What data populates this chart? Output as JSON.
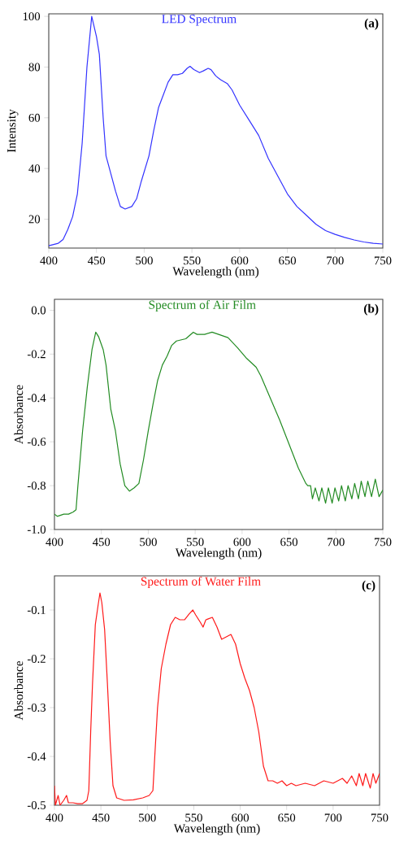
{
  "chart_data": [
    {
      "type": "line",
      "title": "LED Spectrum",
      "xlabel": "Wavelength (nm)",
      "ylabel": "Intensity",
      "annotations": [
        "(a)"
      ],
      "xlim": [
        400,
        750
      ],
      "ylim": [
        8.6,
        101
      ],
      "xticks": [
        400,
        450,
        500,
        550,
        600,
        650,
        700,
        750
      ],
      "yticks": [
        20,
        40,
        60,
        80,
        100
      ],
      "x": [
        400,
        410,
        415,
        420,
        425,
        430,
        435,
        440,
        445,
        450,
        453,
        457,
        460,
        465,
        470,
        475,
        480,
        487,
        492,
        497,
        505,
        510,
        515,
        520,
        525,
        530,
        535,
        540,
        545,
        548,
        552,
        558,
        562,
        567,
        570,
        575,
        580,
        587,
        592,
        600,
        610,
        620,
        630,
        640,
        650,
        660,
        670,
        680,
        690,
        700,
        710,
        720,
        730,
        740,
        750
      ],
      "series": [
        {
          "color": "#3333ff",
          "values": [
            9.5,
            10.5,
            12,
            16,
            21,
            30,
            50,
            80,
            100,
            92,
            85,
            60,
            45,
            38,
            31,
            25,
            24,
            25,
            28,
            35,
            45,
            55,
            64,
            69,
            74,
            77,
            77,
            77.5,
            79.5,
            80.3,
            79,
            77.8,
            78.5,
            79.5,
            79,
            76.5,
            75,
            73.5,
            71,
            65,
            59,
            53,
            44,
            37,
            30,
            25,
            21.5,
            18,
            15.5,
            14,
            12.8,
            11.8,
            11,
            10.5,
            10.2
          ]
        }
      ]
    },
    {
      "type": "line",
      "title": "Spectrum of Air Film",
      "xlabel": "Wavelength (nm)",
      "ylabel": "Absorbance",
      "annotations": [
        "(b)"
      ],
      "xlim": [
        400,
        750
      ],
      "ylim": [
        -1.0,
        0.05
      ],
      "xticks": [
        400,
        450,
        500,
        550,
        600,
        650,
        700,
        750
      ],
      "yticks": [
        {
          "value": 0,
          "label": "0.0"
        },
        -0.2,
        -0.4,
        -0.6,
        -0.8,
        {
          "value": -1,
          "label": "-1.0"
        }
      ],
      "x": [
        400,
        403,
        410,
        415,
        420,
        423,
        425,
        430,
        435,
        440,
        444,
        447,
        452,
        455,
        460,
        465,
        470,
        475,
        480,
        485,
        490,
        495,
        500,
        505,
        510,
        515,
        520,
        525,
        530,
        540,
        548,
        552,
        560,
        568,
        575,
        585,
        595,
        605,
        615,
        620,
        630,
        640,
        650,
        660,
        668,
        670,
        673,
        675,
        678,
        682,
        685,
        689,
        692,
        696,
        699,
        703,
        706,
        710,
        713,
        717,
        720,
        724,
        727,
        731,
        734,
        738,
        742,
        746,
        750
      ],
      "series": [
        {
          "color": "#228b22",
          "values": [
            -0.93,
            -0.94,
            -0.93,
            -0.93,
            -0.92,
            -0.91,
            -0.8,
            -0.55,
            -0.35,
            -0.18,
            -0.1,
            -0.12,
            -0.18,
            -0.25,
            -0.45,
            -0.55,
            -0.7,
            -0.8,
            -0.825,
            -0.81,
            -0.79,
            -0.68,
            -0.55,
            -0.43,
            -0.32,
            -0.25,
            -0.21,
            -0.16,
            -0.14,
            -0.13,
            -0.1,
            -0.11,
            -0.11,
            -0.1,
            -0.11,
            -0.125,
            -0.17,
            -0.22,
            -0.26,
            -0.3,
            -0.4,
            -0.5,
            -0.61,
            -0.72,
            -0.79,
            -0.8,
            -0.8,
            -0.86,
            -0.81,
            -0.87,
            -0.81,
            -0.88,
            -0.81,
            -0.88,
            -0.81,
            -0.87,
            -0.8,
            -0.87,
            -0.8,
            -0.86,
            -0.79,
            -0.86,
            -0.78,
            -0.85,
            -0.78,
            -0.85,
            -0.77,
            -0.85,
            -0.82
          ]
        }
      ]
    },
    {
      "type": "line",
      "title": "Spectrum of Water Film",
      "xlabel": "Wavelength (nm)",
      "ylabel": "Absorbance",
      "annotations": [
        "(c)"
      ],
      "xlim": [
        400,
        750
      ],
      "ylim": [
        -0.5,
        -0.03
      ],
      "xticks": [
        400,
        450,
        500,
        550,
        600,
        650,
        700,
        750
      ],
      "yticks": [
        -0.1,
        -0.2,
        -0.3,
        -0.4,
        -0.5
      ],
      "x": [
        400,
        401,
        404,
        406,
        410,
        413,
        415,
        420,
        425,
        430,
        435,
        437,
        439,
        441,
        444,
        447,
        449,
        451,
        454,
        457,
        460,
        463,
        467,
        475,
        485,
        495,
        502,
        506,
        508,
        511,
        515,
        520,
        525,
        530,
        535,
        540,
        545,
        549,
        552,
        557,
        560,
        563,
        570,
        575,
        580,
        585,
        590,
        595,
        600,
        605,
        610,
        615,
        620,
        625,
        630,
        635,
        640,
        645,
        650,
        655,
        660,
        670,
        680,
        690,
        700,
        710,
        715,
        720,
        725,
        728,
        732,
        735,
        740,
        743,
        746,
        750
      ],
      "series": [
        {
          "color": "#ff1a1a",
          "values": [
            -0.46,
            -0.5,
            -0.48,
            -0.5,
            -0.49,
            -0.48,
            -0.495,
            -0.495,
            -0.497,
            -0.497,
            -0.49,
            -0.47,
            -0.35,
            -0.25,
            -0.13,
            -0.09,
            -0.065,
            -0.085,
            -0.14,
            -0.25,
            -0.37,
            -0.46,
            -0.485,
            -0.49,
            -0.489,
            -0.485,
            -0.48,
            -0.47,
            -0.4,
            -0.3,
            -0.22,
            -0.17,
            -0.13,
            -0.115,
            -0.12,
            -0.12,
            -0.108,
            -0.1,
            -0.11,
            -0.125,
            -0.135,
            -0.12,
            -0.115,
            -0.135,
            -0.16,
            -0.155,
            -0.15,
            -0.17,
            -0.21,
            -0.24,
            -0.265,
            -0.3,
            -0.35,
            -0.42,
            -0.45,
            -0.45,
            -0.455,
            -0.45,
            -0.46,
            -0.455,
            -0.46,
            -0.455,
            -0.46,
            -0.45,
            -0.455,
            -0.445,
            -0.455,
            -0.44,
            -0.46,
            -0.435,
            -0.46,
            -0.435,
            -0.465,
            -0.435,
            -0.455,
            -0.435
          ]
        }
      ]
    }
  ]
}
